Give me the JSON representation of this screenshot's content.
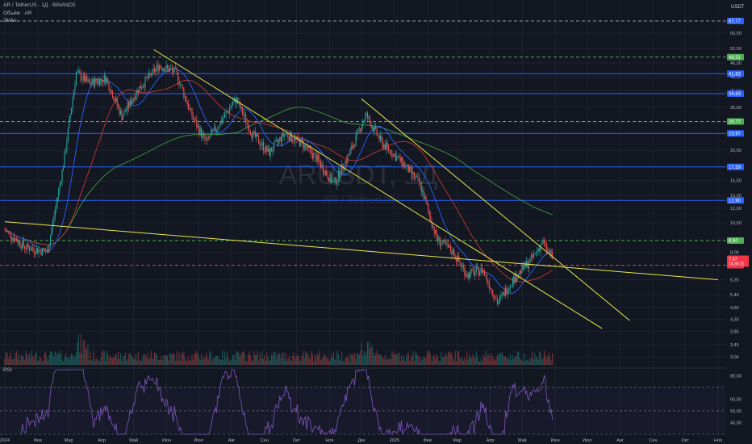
{
  "header": {
    "symbol_line": "AR / TetherUS · 1Д · BINANCE",
    "volume_label": "Объём · AR",
    "mas_label": "3MAs"
  },
  "price_axis": {
    "currency": "USDT",
    "ticks": [
      "60,50",
      "52,50",
      "46,00",
      "40,50",
      "35,50",
      "30,50",
      "26,50",
      "20,50",
      "15,50",
      "13,50",
      "12,00",
      "10,50",
      "8,00",
      "6,20",
      "5,40",
      "4,80",
      "4,30",
      "3,85",
      "3,40",
      "3,04"
    ]
  },
  "rsi": {
    "label": "RSI",
    "ticks": [
      "80,00",
      "60,00",
      "50,00",
      "40,00"
    ]
  },
  "time_axis": [
    "2024",
    "Фев",
    "Мар",
    "Апр",
    "Май",
    "Июн",
    "Июл",
    "Авг",
    "Сен",
    "Окт",
    "Ноя",
    "Дек",
    "2025",
    "Фев",
    "Мар",
    "Апр",
    "Май",
    "Июн",
    "Июл",
    "Авг",
    "Сен",
    "Окт",
    "Ноя"
  ],
  "watermark": {
    "big": "ARUSDT, 1Д",
    "small": "AR / TetherUS"
  },
  "levels": [
    {
      "value": "67,77",
      "style": "dashed-gray",
      "tag_color": "#2962ff"
    },
    {
      "value": "48,51",
      "style": "dashed-green",
      "tag_color": "#4caf50"
    },
    {
      "value": "41,63",
      "style": "solid-blue",
      "tag_color": "#2962ff"
    },
    {
      "value": "34,63",
      "style": "solid-blue",
      "tag_color": "#2962ff"
    },
    {
      "value": "26,77",
      "style": "dashed-green",
      "tag_color": "#4caf50"
    },
    {
      "value": "23,97",
      "style": "solid-blue",
      "tag_color": "#2962ff"
    },
    {
      "value": "17,59",
      "style": "solid-blue",
      "tag_color": "#2962ff"
    },
    {
      "value": "12,90",
      "style": "solid-blue",
      "tag_color": "#2962ff"
    },
    {
      "value": "8,90",
      "style": "dashed-green",
      "tag_color": "#4caf50"
    },
    {
      "value": "7,09",
      "style": "dashed-red",
      "tag_color": "#f23645"
    }
  ],
  "current_price": {
    "value": "7,47",
    "countdown": "14:36:21",
    "color": "#f23645"
  },
  "colors": {
    "background": "#131722",
    "up": "#26a69a",
    "down": "#ef5350",
    "trend": "#e8e84a",
    "ma_long": "#3f9b3f",
    "ma_mid": "#c0392b",
    "ma_short": "#2962ff",
    "rsi": "#7e57c2"
  },
  "chart_data": {
    "type": "candlestick",
    "x_range": [
      "2024-01",
      "2025-11"
    ],
    "y_scale": "log",
    "ylim": [
      3.04,
      67.77
    ],
    "close_path": [
      {
        "date": "2024-01-01",
        "close": 9.8
      },
      {
        "date": "2024-01-20",
        "close": 8.4
      },
      {
        "date": "2024-02-10",
        "close": 8.0
      },
      {
        "date": "2024-02-25",
        "close": 18.0
      },
      {
        "date": "2024-03-08",
        "close": 42.0
      },
      {
        "date": "2024-03-20",
        "close": 38.0
      },
      {
        "date": "2024-04-05",
        "close": 40.0
      },
      {
        "date": "2024-04-20",
        "close": 28.0
      },
      {
        "date": "2024-05-05",
        "close": 36.0
      },
      {
        "date": "2024-05-25",
        "close": 45.0
      },
      {
        "date": "2024-06-10",
        "close": 42.0
      },
      {
        "date": "2024-06-25",
        "close": 28.0
      },
      {
        "date": "2024-07-08",
        "close": 22.0
      },
      {
        "date": "2024-07-25",
        "close": 28.0
      },
      {
        "date": "2024-08-05",
        "close": 33.0
      },
      {
        "date": "2024-08-20",
        "close": 24.0
      },
      {
        "date": "2024-09-05",
        "close": 20.0
      },
      {
        "date": "2024-09-20",
        "close": 24.0
      },
      {
        "date": "2024-10-05",
        "close": 22.0
      },
      {
        "date": "2024-10-20",
        "close": 19.0
      },
      {
        "date": "2024-11-05",
        "close": 15.0
      },
      {
        "date": "2024-11-20",
        "close": 20.0
      },
      {
        "date": "2024-12-05",
        "close": 28.5
      },
      {
        "date": "2024-12-20",
        "close": 22.0
      },
      {
        "date": "2025-01-10",
        "close": 18.0
      },
      {
        "date": "2025-01-25",
        "close": 15.0
      },
      {
        "date": "2025-02-10",
        "close": 9.0
      },
      {
        "date": "2025-02-25",
        "close": 8.0
      },
      {
        "date": "2025-03-10",
        "close": 6.5
      },
      {
        "date": "2025-03-25",
        "close": 6.8
      },
      {
        "date": "2025-04-08",
        "close": 5.0
      },
      {
        "date": "2025-04-22",
        "close": 6.2
      },
      {
        "date": "2025-05-10",
        "close": 7.5
      },
      {
        "date": "2025-05-20",
        "close": 8.8
      },
      {
        "date": "2025-05-30",
        "close": 7.47
      }
    ]
  }
}
